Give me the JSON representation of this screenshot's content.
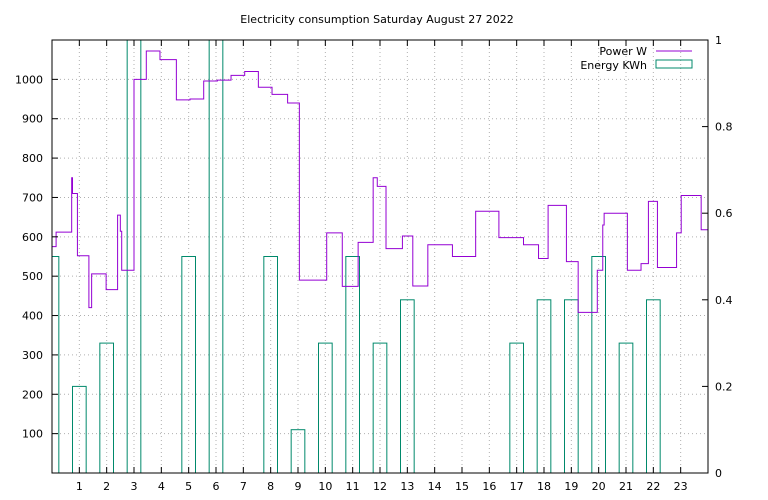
{
  "chart_data": {
    "type": "line",
    "title": "Electricity consumption Saturday August 27 2022",
    "xlabel": "",
    "ylabel": "",
    "xlim": [
      0,
      24
    ],
    "ylim": [
      0,
      1100
    ],
    "y2lim": [
      0,
      1
    ],
    "grid": true,
    "legend_position": "top-right",
    "x_ticks": [
      "1",
      "2",
      "3",
      "4",
      "5",
      "6",
      "7",
      "8",
      "9",
      "10",
      "11",
      "12",
      "13",
      "14",
      "15",
      "16",
      "17",
      "18",
      "19",
      "20",
      "21",
      "22",
      "23"
    ],
    "y_ticks": [
      "100",
      "200",
      "300",
      "400",
      "500",
      "600",
      "700",
      "800",
      "900",
      "1000"
    ],
    "y2_ticks": [
      "0",
      "0.2",
      "0.4",
      "0.6",
      "0.8",
      "1"
    ],
    "series": [
      {
        "name": "Power W",
        "type": "step-line",
        "axis": "y1",
        "color": "#9400d3",
        "x": [
          0,
          0.15,
          0.72,
          0.75,
          0.93,
          1.35,
          1.45,
          1.98,
          2.4,
          2.5,
          2.55,
          3.0,
          3.45,
          3.95,
          4.55,
          5.05,
          5.55,
          6.05,
          6.55,
          7.05,
          7.55,
          8.05,
          8.62,
          9.05,
          10.05,
          10.62,
          11.2,
          11.75,
          11.9,
          12.22,
          12.82,
          13.2,
          13.75,
          14.65,
          15.5,
          16.35,
          17.25,
          17.8,
          18.15,
          18.82,
          19.25,
          19.95,
          20.15,
          20.2,
          21.05,
          21.55,
          21.82,
          22.15,
          22.85,
          23.02,
          23.75,
          24
        ],
        "values": [
          575,
          612,
          750,
          710,
          552,
          420,
          506,
          466,
          655,
          614,
          515,
          1000,
          1072,
          1050,
          948,
          950,
          996,
          998,
          1010,
          1020,
          980,
          962,
          940,
          490,
          610,
          474,
          586,
          750,
          728,
          570,
          602,
          475,
          580,
          550,
          665,
          598,
          580,
          545,
          680,
          537,
          408,
          515,
          630,
          660,
          515,
          532,
          690,
          522,
          610,
          705,
          618,
          618
        ]
      },
      {
        "name": "Energy KWh",
        "type": "bar",
        "axis": "y2",
        "color": "#00896b",
        "categories": [
          0,
          1,
          2,
          3,
          4,
          5,
          6,
          7,
          8,
          9,
          10,
          11,
          12,
          13,
          14,
          15,
          16,
          17,
          18,
          19,
          20,
          21,
          22,
          23
        ],
        "values": [
          0.5,
          0.2,
          0.3,
          1.0,
          0,
          0.5,
          1.0,
          0,
          0.5,
          0.1,
          0.3,
          0.5,
          0.3,
          0.4,
          0,
          0,
          0,
          0.3,
          0.4,
          0.4,
          0.5,
          0.3,
          0.4,
          0
        ]
      }
    ]
  }
}
